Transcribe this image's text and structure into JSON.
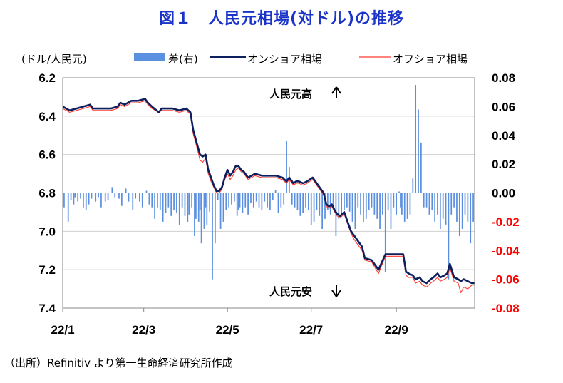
{
  "title": "図１　人民元相場(対ドル)の推移",
  "source": "（出所）Refinitiv より第一生命経済研究所作成",
  "colors": {
    "bars": "#5b8fe0",
    "onshore": "#0d1f5c",
    "offshore": "#ff3b30",
    "grid": "#d0d0d0",
    "title": "#1a33c8",
    "neg_tick": "#ff0000"
  },
  "chart_data": {
    "type": "line",
    "left_axis_unit": "(ドル/人民元)",
    "left_ylim": [
      6.2,
      7.4
    ],
    "left_ticks": [
      "6.2",
      "6.4",
      "6.6",
      "6.8",
      "7.0",
      "7.2",
      "7.4"
    ],
    "right_ylim": [
      -0.08,
      0.08
    ],
    "right_ticks": [
      "0.08",
      "0.06",
      "0.04",
      "0.02",
      "0.00",
      "-0.02",
      "-0.04",
      "-0.06",
      "-0.08"
    ],
    "x_ticks": [
      "22/1",
      "22/3",
      "22/5",
      "22/7",
      "22/9"
    ],
    "legend": {
      "diff": "差(右)",
      "onshore": "オンショア相場",
      "offshore": "オフショア相場"
    },
    "annotations": {
      "top": "人民元高",
      "bottom": "人民元安"
    },
    "series": [
      {
        "name": "オンショア相場",
        "key": "onshore",
        "x": [
          0,
          5,
          10,
          15,
          20,
          22,
          25,
          30,
          35,
          40,
          42,
          45,
          50,
          55,
          60,
          62,
          65,
          70,
          72,
          75,
          80,
          85,
          90,
          93,
          95,
          98,
          100,
          102,
          104,
          106,
          108,
          110,
          112,
          114,
          116,
          118,
          120,
          122,
          124,
          126,
          128,
          130,
          132,
          135,
          140,
          145,
          150,
          155,
          160,
          163,
          165,
          168,
          170,
          172,
          175,
          178,
          180,
          182,
          185,
          188,
          190,
          192,
          194,
          196,
          198,
          200,
          202,
          205,
          208,
          210,
          212,
          215,
          218,
          220,
          225,
          230,
          235,
          240,
          242,
          245,
          248,
          250,
          252,
          255,
          257,
          260,
          262,
          265,
          268,
          270,
          273,
          275,
          278,
          280,
          282,
          285,
          288,
          290,
          292,
          295,
          298,
          300
        ],
        "values": [
          6.35,
          6.37,
          6.36,
          6.35,
          6.34,
          6.36,
          6.36,
          6.36,
          6.36,
          6.35,
          6.33,
          6.34,
          6.32,
          6.32,
          6.31,
          6.33,
          6.35,
          6.38,
          6.36,
          6.36,
          6.36,
          6.37,
          6.36,
          6.38,
          6.47,
          6.55,
          6.6,
          6.61,
          6.6,
          6.68,
          6.72,
          6.76,
          6.79,
          6.79,
          6.77,
          6.72,
          6.68,
          6.71,
          6.69,
          6.66,
          6.66,
          6.68,
          6.69,
          6.72,
          6.7,
          6.71,
          6.71,
          6.71,
          6.72,
          6.74,
          6.72,
          6.75,
          6.74,
          6.74,
          6.75,
          6.74,
          6.73,
          6.72,
          6.75,
          6.78,
          6.8,
          6.86,
          6.87,
          6.86,
          6.89,
          6.91,
          6.92,
          6.9,
          6.96,
          7.0,
          7.02,
          7.05,
          7.08,
          7.14,
          7.15,
          7.2,
          7.12,
          7.12,
          7.12,
          7.12,
          7.12,
          7.21,
          7.22,
          7.23,
          7.25,
          7.24,
          7.26,
          7.27,
          7.25,
          7.24,
          7.22,
          7.24,
          7.23,
          7.22,
          7.17,
          7.24,
          7.25,
          7.26,
          7.25,
          7.26,
          7.27,
          7.27
        ]
      },
      {
        "name": "オフショア相場",
        "key": "offshore",
        "x": [
          0,
          5,
          10,
          15,
          20,
          22,
          25,
          30,
          35,
          40,
          42,
          45,
          50,
          55,
          60,
          62,
          65,
          70,
          72,
          75,
          80,
          85,
          90,
          93,
          95,
          98,
          100,
          102,
          104,
          106,
          108,
          110,
          112,
          114,
          116,
          118,
          120,
          122,
          124,
          126,
          128,
          130,
          132,
          135,
          140,
          145,
          150,
          155,
          160,
          163,
          165,
          168,
          170,
          172,
          175,
          178,
          180,
          182,
          185,
          188,
          190,
          192,
          194,
          196,
          198,
          200,
          202,
          205,
          208,
          210,
          212,
          215,
          218,
          220,
          225,
          230,
          235,
          240,
          242,
          245,
          248,
          250,
          252,
          255,
          257,
          260,
          262,
          265,
          268,
          270,
          273,
          275,
          278,
          280,
          282,
          285,
          288,
          290,
          292,
          295,
          298,
          300
        ],
        "values": [
          6.36,
          6.38,
          6.37,
          6.36,
          6.35,
          6.37,
          6.37,
          6.37,
          6.37,
          6.36,
          6.34,
          6.35,
          6.33,
          6.33,
          6.32,
          6.34,
          6.36,
          6.38,
          6.37,
          6.37,
          6.37,
          6.38,
          6.37,
          6.39,
          6.49,
          6.57,
          6.63,
          6.64,
          6.62,
          6.7,
          6.74,
          6.77,
          6.8,
          6.8,
          6.78,
          6.73,
          6.7,
          6.73,
          6.71,
          6.68,
          6.67,
          6.69,
          6.7,
          6.73,
          6.71,
          6.72,
          6.72,
          6.72,
          6.73,
          6.75,
          6.73,
          6.76,
          6.75,
          6.75,
          6.76,
          6.75,
          6.74,
          6.73,
          6.76,
          6.79,
          6.81,
          6.87,
          6.88,
          6.87,
          6.9,
          6.92,
          6.93,
          6.91,
          6.97,
          7.01,
          7.04,
          7.07,
          7.1,
          7.15,
          7.16,
          7.22,
          7.13,
          7.13,
          7.13,
          7.13,
          7.13,
          7.23,
          7.24,
          7.24,
          7.27,
          7.26,
          7.28,
          7.29,
          7.27,
          7.26,
          7.24,
          7.26,
          7.25,
          7.24,
          7.19,
          7.26,
          7.27,
          7.32,
          7.29,
          7.3,
          7.28,
          7.28
        ]
      }
    ],
    "diff_series": {
      "name": "差(右)",
      "x": [
        1,
        4,
        6,
        8,
        9,
        11,
        13,
        15,
        17,
        19,
        21,
        24,
        26,
        28,
        31,
        33,
        36,
        38,
        41,
        43,
        46,
        48,
        51,
        53,
        56,
        58,
        61,
        63,
        65,
        67,
        69,
        71,
        73,
        75,
        77,
        79,
        81,
        83,
        85,
        87,
        89,
        91,
        92,
        94,
        96,
        97,
        99,
        100,
        101,
        103,
        104,
        105,
        107,
        109,
        111,
        113,
        115,
        117,
        119,
        121,
        123,
        125,
        127,
        128,
        129,
        131,
        133,
        135,
        137,
        139,
        141,
        143,
        145,
        147,
        149,
        151,
        153,
        155,
        157,
        159,
        161,
        163,
        165,
        167,
        169,
        171,
        173,
        175,
        177,
        179,
        181,
        183,
        185,
        187,
        189,
        191,
        193,
        195,
        197,
        199,
        201,
        203,
        205,
        207,
        209,
        211,
        213,
        215,
        217,
        219,
        221,
        223,
        225,
        227,
        229,
        231,
        233,
        235,
        237,
        239,
        241,
        243,
        245,
        246,
        247,
        249,
        251,
        253,
        255,
        257,
        259,
        261,
        263,
        265,
        267,
        269,
        271,
        273,
        275,
        277,
        279,
        281,
        283,
        285,
        287,
        289,
        291,
        293,
        295,
        297,
        299
      ],
      "values": [
        -0.01,
        -0.02,
        -0.005,
        -0.008,
        -0.003,
        -0.006,
        -0.004,
        -0.01,
        -0.012,
        -0.008,
        -0.004,
        -0.006,
        -0.003,
        -0.01,
        -0.006,
        -0.005,
        0.004,
        -0.003,
        -0.004,
        -0.009,
        0.003,
        -0.006,
        -0.012,
        -0.004,
        -0.006,
        -0.01,
        0.0015,
        -0.008,
        -0.01,
        -0.018,
        -0.01,
        -0.012,
        -0.02,
        -0.014,
        -0.01,
        -0.016,
        -0.012,
        -0.014,
        -0.022,
        -0.01,
        -0.016,
        -0.02,
        -0.015,
        -0.01,
        -0.03,
        -0.018,
        -0.02,
        -0.012,
        -0.035,
        -0.025,
        -0.01,
        -0.022,
        -0.013,
        -0.06,
        -0.035,
        -0.005,
        -0.025,
        -0.02,
        -0.012,
        -0.01,
        -0.008,
        -0.006,
        -0.016,
        -0.012,
        -0.01,
        -0.014,
        -0.01,
        -0.015,
        -0.007,
        -0.01,
        -0.006,
        -0.01,
        -0.012,
        -0.006,
        -0.01,
        -0.012,
        -0.005,
        0.002,
        -0.014,
        -0.01,
        -0.008,
        0.036,
        0.018,
        -0.008,
        -0.01,
        -0.012,
        -0.016,
        -0.014,
        -0.01,
        -0.012,
        -0.022,
        -0.02,
        -0.012,
        -0.016,
        -0.025,
        -0.018,
        -0.012,
        -0.015,
        -0.01,
        -0.03,
        -0.018,
        -0.015,
        -0.012,
        -0.01,
        -0.013,
        -0.02,
        -0.025,
        -0.01,
        -0.015,
        -0.02,
        -0.018,
        -0.012,
        -0.01,
        -0.015,
        -0.018,
        -0.025,
        -0.015,
        -0.055,
        -0.012,
        -0.025,
        -0.01,
        -0.015,
        0.001,
        -0.01,
        -0.015,
        -0.02,
        -0.018,
        -0.015,
        0.01,
        0.075,
        0.058,
        0.035,
        -0.01,
        -0.01,
        -0.015,
        -0.012,
        -0.02,
        -0.015,
        -0.025,
        -0.018,
        -0.022,
        -0.06,
        -0.015,
        -0.01,
        -0.02,
        -0.03,
        -0.025,
        -0.015,
        -0.02,
        -0.035,
        -0.02
      ]
    }
  }
}
